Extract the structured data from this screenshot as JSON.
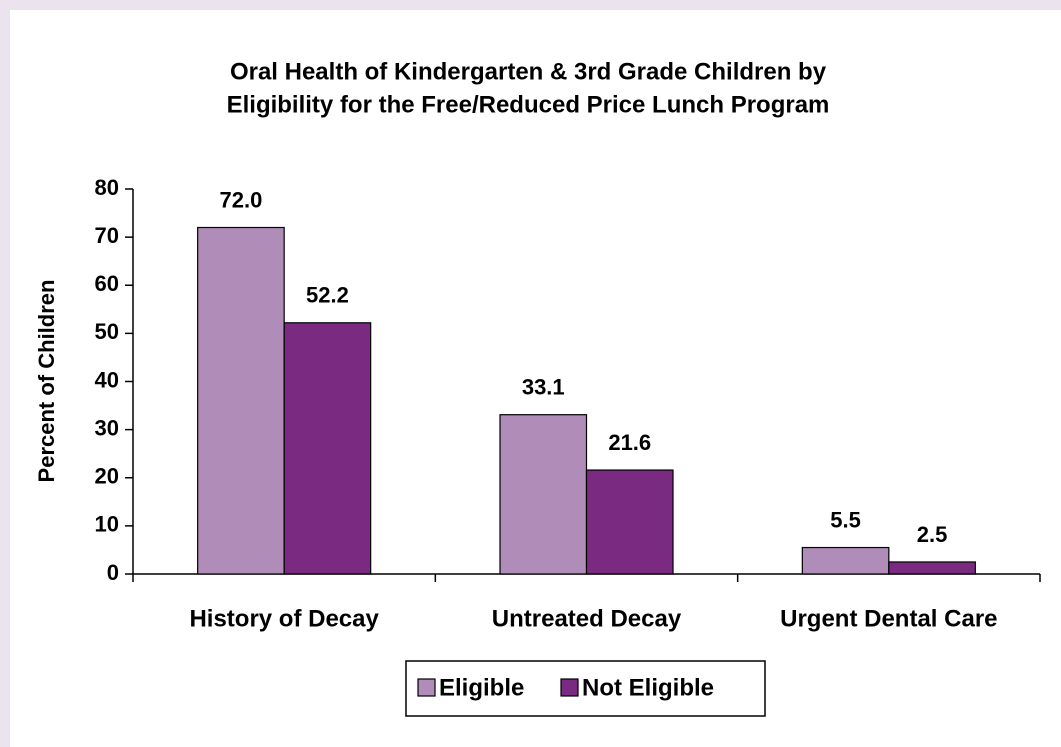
{
  "chart_data": {
    "type": "bar",
    "title": [
      "Oral Health of Kindergarten & 3rd Grade Children by",
      "Eligibility for the Free/Reduced Price Lunch Program"
    ],
    "y_label": "Percent of Children",
    "categories": [
      "History of Decay",
      "Untreated Decay",
      "Urgent Dental Care"
    ],
    "series": [
      {
        "name": "Eligible",
        "color": "#b08cb9",
        "values": [
          72.0,
          33.1,
          5.5
        ],
        "value_labels": [
          "72.0",
          "33.1",
          "5.5"
        ]
      },
      {
        "name": "Not Eligible",
        "color": "#7b2a82",
        "values": [
          52.2,
          21.6,
          2.5
        ],
        "value_labels": [
          "52.2",
          "21.6",
          "2.5"
        ]
      }
    ],
    "ylim": [
      0,
      80
    ],
    "yticks": [
      0,
      10,
      20,
      30,
      40,
      50,
      60,
      70,
      80
    ],
    "grid": false,
    "legend": "bottom"
  }
}
